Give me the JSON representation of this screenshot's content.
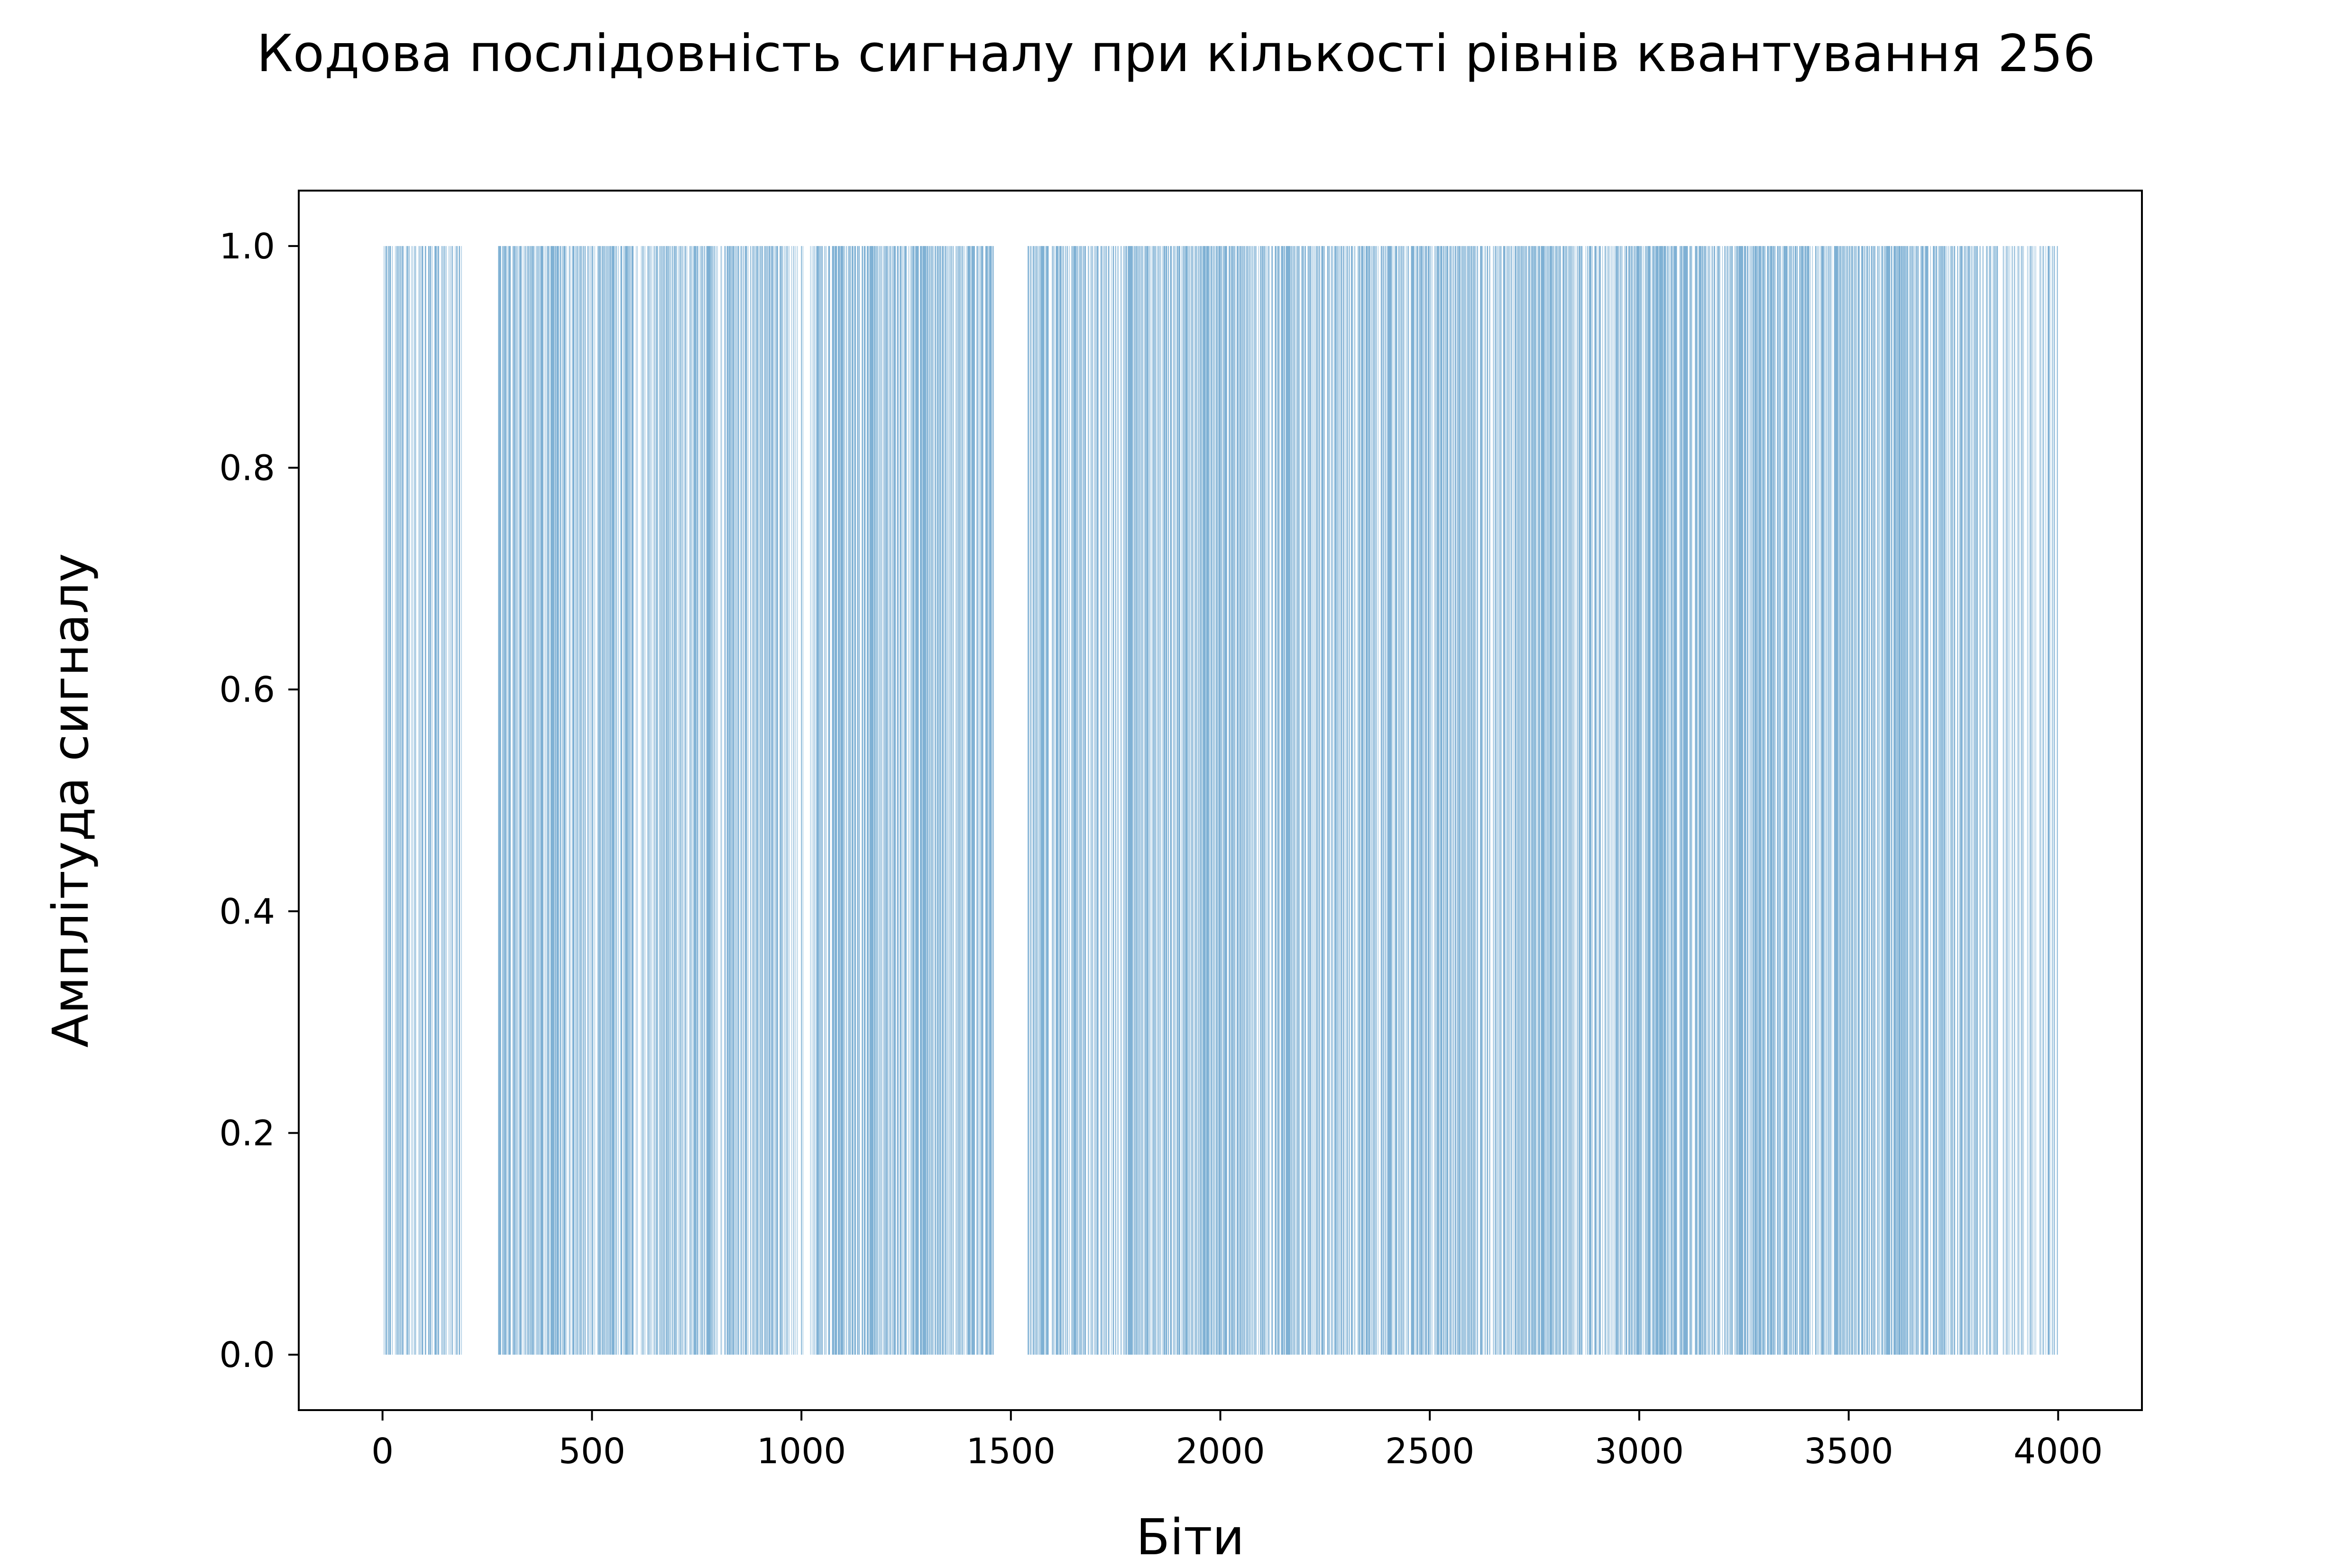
{
  "chart_data": {
    "type": "bar",
    "title": "Кодова послідовність сигналу при кількості рівнів квантування 256",
    "xlabel": "Біти",
    "ylabel": "Амплітуда сигналу",
    "xlim": [
      -200,
      4200
    ],
    "ylim": [
      -0.05,
      1.05
    ],
    "xticks": [
      0,
      500,
      1000,
      1500,
      2000,
      2500,
      3000,
      3500,
      4000
    ],
    "yticks": [
      0.0,
      0.2,
      0.4,
      0.6,
      0.8,
      1.0
    ],
    "xtick_labels": [
      "0",
      "500",
      "1000",
      "1500",
      "2000",
      "2500",
      "3000",
      "3500",
      "4000"
    ],
    "ytick_labels": [
      "0.0",
      "0.2",
      "0.4",
      "0.6",
      "0.8",
      "1.0"
    ],
    "bit_count": 4000,
    "bar_color": "#1f77b4",
    "grid": false,
    "legend": "none",
    "segments": [
      {
        "start": 0,
        "end": 190,
        "density": 0.45
      },
      {
        "start": 190,
        "end": 275,
        "density": 0.0
      },
      {
        "start": 275,
        "end": 960,
        "density": 0.55
      },
      {
        "start": 960,
        "end": 1030,
        "density": 0.2
      },
      {
        "start": 1030,
        "end": 1460,
        "density": 0.6
      },
      {
        "start": 1460,
        "end": 1540,
        "density": 0.0
      },
      {
        "start": 1540,
        "end": 3800,
        "density": 0.55
      },
      {
        "start": 3800,
        "end": 4000,
        "density": 0.42
      }
    ]
  }
}
